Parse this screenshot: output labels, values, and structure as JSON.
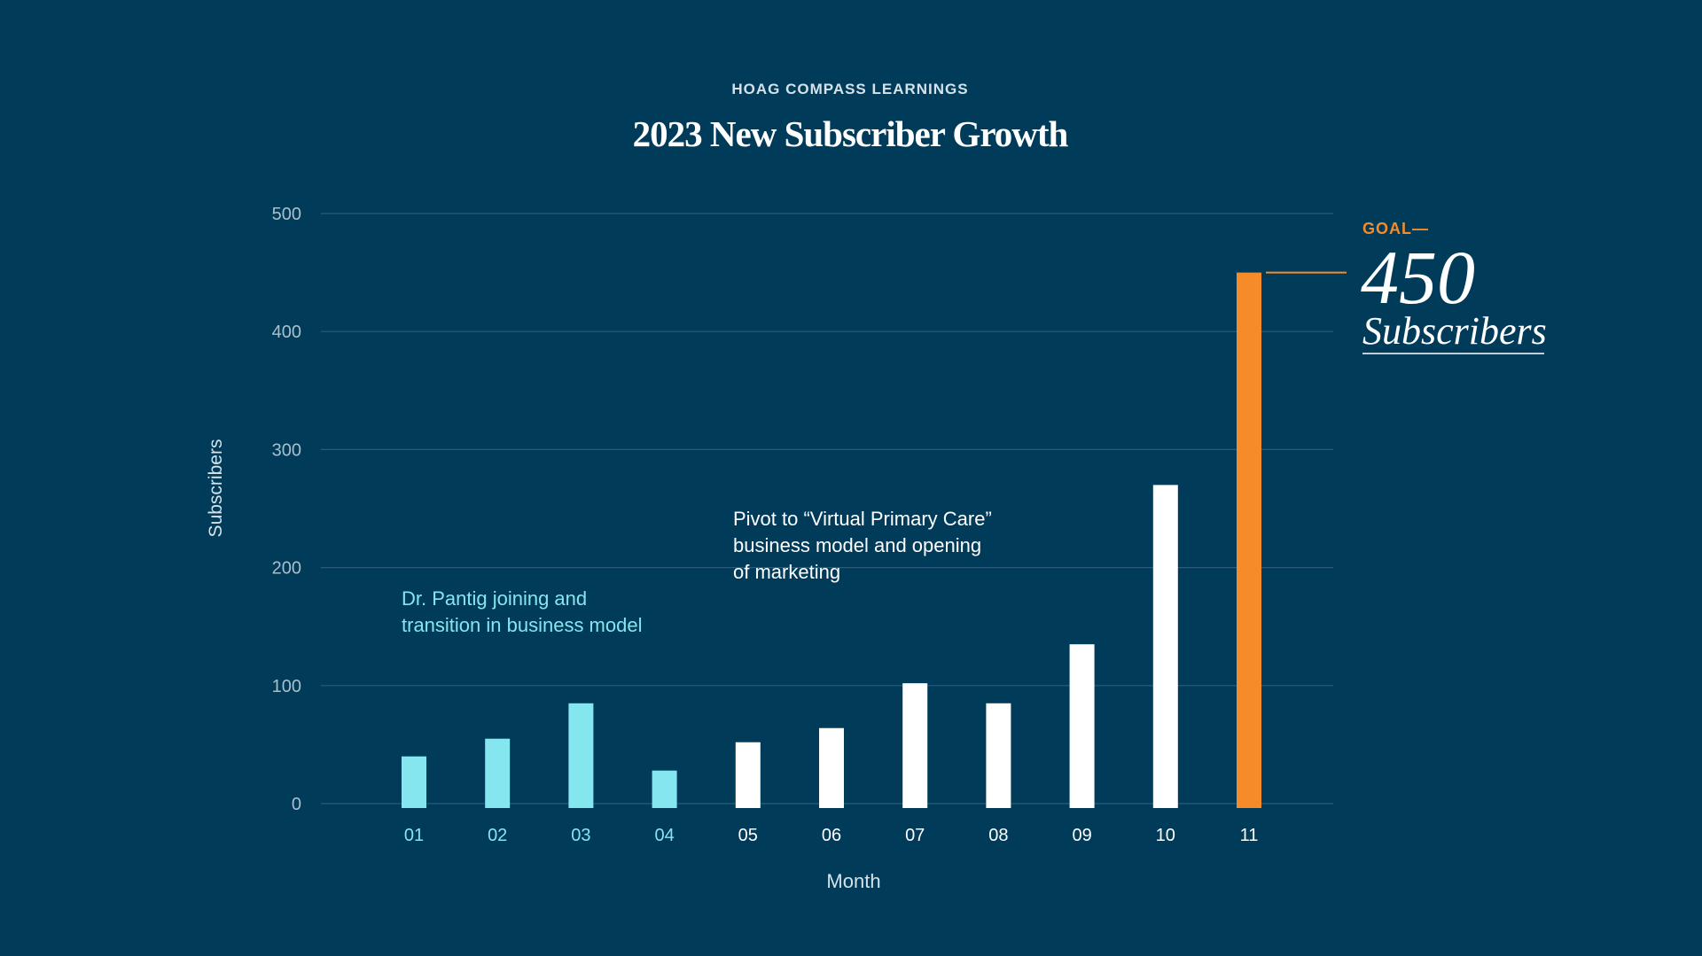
{
  "header": {
    "kicker": "HOAG COMPASS LEARNINGS",
    "title": "2023 New Subscriber Growth"
  },
  "colors": {
    "background": "#003b5a",
    "phase1": "#86e6f0",
    "phase2": "#ffffff",
    "goal": "#f68b2a",
    "gridline": "#2b5d7a",
    "tick": "#a9bfcc"
  },
  "chart_data": {
    "type": "bar",
    "categories": [
      "01",
      "02",
      "03",
      "04",
      "05",
      "06",
      "07",
      "08",
      "09",
      "10",
      "11"
    ],
    "values": [
      40,
      55,
      85,
      28,
      52,
      64,
      102,
      85,
      135,
      270,
      450
    ],
    "phase": [
      "phase1",
      "phase1",
      "phase1",
      "phase1",
      "phase2",
      "phase2",
      "phase2",
      "phase2",
      "phase2",
      "phase2",
      "goal"
    ],
    "title": "2023 New Subscriber Growth",
    "xlabel": "Month",
    "ylabel": "Subscribers",
    "ylim": [
      0,
      500
    ],
    "yticks": [
      0,
      100,
      200,
      300,
      400,
      500
    ],
    "grid": true,
    "annotations": [
      {
        "lines": [
          "Dr. Pantig joining and",
          "transition in business model"
        ],
        "color": "phase1"
      },
      {
        "lines": [
          "Pivot to “Virtual Primary Care”",
          "business model and opening",
          "of marketing"
        ],
        "color": "phase2"
      }
    ],
    "goal": {
      "label": "GOAL—",
      "value": "450",
      "unit": "Subscribers"
    }
  }
}
